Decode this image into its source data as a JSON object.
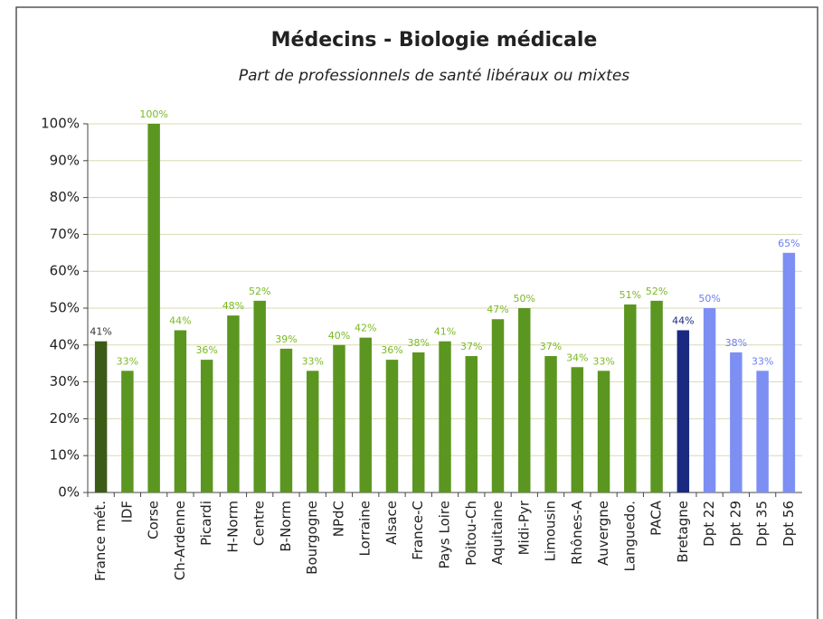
{
  "chart_data": {
    "type": "bar",
    "title": "Médecins - Biologie médicale",
    "subtitle": "Part de professionnels de santé libéraux ou mixtes",
    "categories": [
      "France mét.",
      "IDF",
      "Corse",
      "Ch-Ardenne",
      "Picardi",
      "H-Norm",
      "Centre",
      "B-Norm",
      "Bourgogne",
      "NPdC",
      "Lorraine",
      "Alsace",
      "France-C",
      "Pays Loire",
      "Poitou-Ch",
      "Aquitaine",
      "Midi-Pyr",
      "Limousin",
      "Rhônes-A",
      "Auvergne",
      "Languedo.",
      "PACA",
      "Bretagne",
      "Dpt 22",
      "Dpt 29",
      "Dpt 35",
      "Dpt 56"
    ],
    "values": [
      41,
      33,
      100,
      44,
      36,
      48,
      52,
      39,
      33,
      40,
      42,
      36,
      38,
      41,
      37,
      47,
      50,
      37,
      34,
      33,
      51,
      52,
      44,
      50,
      38,
      33,
      65
    ],
    "value_labels": [
      "41%",
      "33%",
      "100%",
      "44%",
      "36%",
      "48%",
      "52%",
      "39%",
      "33%",
      "40%",
      "42%",
      "36%",
      "38%",
      "41%",
      "37%",
      "47%",
      "50%",
      "37%",
      "34%",
      "33%",
      "51%",
      "52%",
      "44%",
      "50%",
      "38%",
      "33%",
      "65%"
    ],
    "colors": [
      "#3b5b17",
      "#5b9620",
      "#5b9620",
      "#5b9620",
      "#5b9620",
      "#5b9620",
      "#5b9620",
      "#5b9620",
      "#5b9620",
      "#5b9620",
      "#5b9620",
      "#5b9620",
      "#5b9620",
      "#5b9620",
      "#5b9620",
      "#5b9620",
      "#5b9620",
      "#5b9620",
      "#5b9620",
      "#5b9620",
      "#5b9620",
      "#5b9620",
      "#1a2a80",
      "#7d8ff2",
      "#7d8ff2",
      "#7d8ff2",
      "#7d8ff2"
    ],
    "label_colors": [
      "#333333",
      "#7ab824",
      "#7ab824",
      "#7ab824",
      "#7ab824",
      "#7ab824",
      "#7ab824",
      "#7ab824",
      "#7ab824",
      "#7ab824",
      "#7ab824",
      "#7ab824",
      "#7ab824",
      "#7ab824",
      "#7ab824",
      "#7ab824",
      "#7ab824",
      "#7ab824",
      "#7ab824",
      "#7ab824",
      "#7ab824",
      "#7ab824",
      "#1a2a80",
      "#6a7ef0",
      "#6a7ef0",
      "#6a7ef0",
      "#6a7ef0"
    ],
    "ylim": [
      0,
      100
    ],
    "yticks": [
      {
        "value": 0,
        "label": "0%"
      },
      {
        "value": 10,
        "label": "10%"
      },
      {
        "value": 20,
        "label": "20%"
      },
      {
        "value": 30,
        "label": "30%"
      },
      {
        "value": 40,
        "label": "40%"
      },
      {
        "value": 50,
        "label": "50%"
      },
      {
        "value": 60,
        "label": "60%"
      },
      {
        "value": 70,
        "label": "70%"
      },
      {
        "value": 80,
        "label": "80%"
      },
      {
        "value": 90,
        "label": "90%"
      },
      {
        "value": 100,
        "label": "100%"
      }
    ],
    "grid": true
  }
}
